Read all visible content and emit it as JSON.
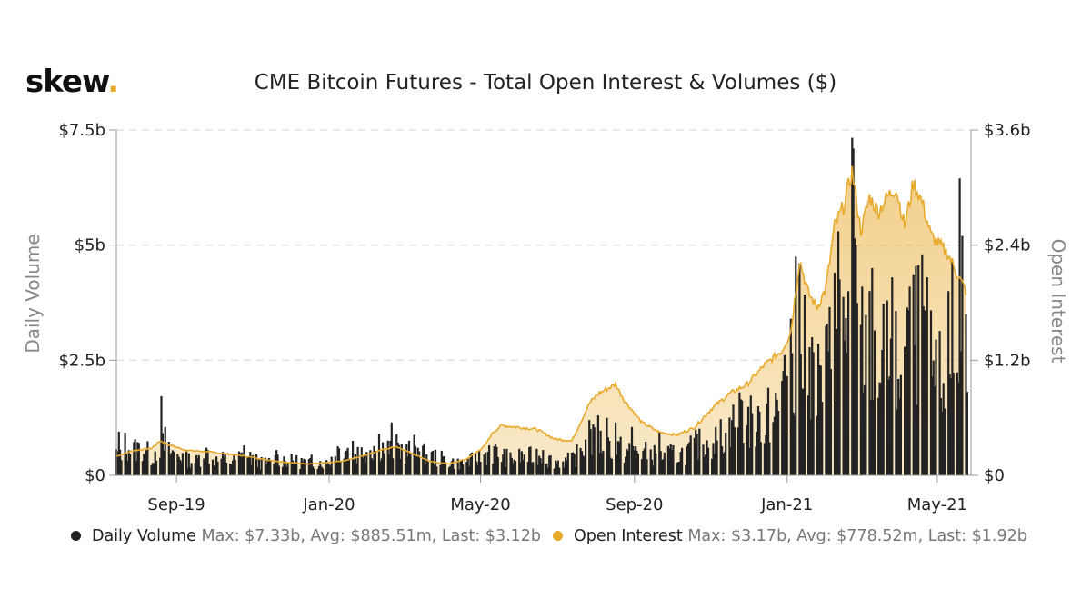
{
  "brand": {
    "name": "skew",
    "dot": "."
  },
  "title": "CME Bitcoin Futures - Total Open Interest & Volumes ($)",
  "legend": [
    {
      "name": "Daily Volume",
      "stats": "Max: $7.33b, Avg: $885.51m, Last: $3.12b",
      "color": "#222222"
    },
    {
      "name": "Open Interest",
      "stats": "Max: $3.17b, Avg: $778.52m, Last: $1.92b",
      "color": "#e8a92b"
    }
  ],
  "chart_data": {
    "type": "bar+area",
    "title": "CME Bitcoin Futures - Total Open Interest & Volumes ($)",
    "x_range": [
      "2019-07-15",
      "2021-05-28"
    ],
    "x_ticks": [
      {
        "date": "2019-09-01",
        "label": "Sep-19"
      },
      {
        "date": "2020-01-01",
        "label": "Jan-20"
      },
      {
        "date": "2020-05-01",
        "label": "May-20"
      },
      {
        "date": "2020-09-01",
        "label": "Sep-20"
      },
      {
        "date": "2021-01-01",
        "label": "Jan-21"
      },
      {
        "date": "2021-05-01",
        "label": "May-21"
      }
    ],
    "y_left": {
      "label": "Daily Volume",
      "min": 0,
      "max": 7.5,
      "ticks": [
        {
          "v": 0,
          "label": "$0"
        },
        {
          "v": 2.5,
          "label": "$2.5b"
        },
        {
          "v": 5,
          "label": "$5b"
        },
        {
          "v": 7.5,
          "label": "$7.5b"
        }
      ]
    },
    "y_right": {
      "label": "Open Interest",
      "min": 0,
      "max": 3.6,
      "ticks": [
        {
          "v": 0,
          "label": "$0"
        },
        {
          "v": 1.2,
          "label": "$1.2b"
        },
        {
          "v": 2.4,
          "label": "$2.4b"
        },
        {
          "v": 3.6,
          "label": "$3.6b"
        }
      ]
    },
    "grid": true,
    "series": [
      {
        "name": "Daily Volume",
        "type": "bar",
        "axis": "left",
        "unit": "$b",
        "color": "#222222",
        "points": [
          [
            "2019-07-15",
            0.45
          ],
          [
            "2019-07-22",
            0.65
          ],
          [
            "2019-07-29",
            0.55
          ],
          [
            "2019-08-05",
            0.6
          ],
          [
            "2019-08-12",
            0.4
          ],
          [
            "2019-08-19",
            0.7
          ],
          [
            "2019-08-26",
            0.5
          ],
          [
            "2019-09-03",
            0.45
          ],
          [
            "2019-09-10",
            0.35
          ],
          [
            "2019-09-17",
            0.3
          ],
          [
            "2019-09-24",
            0.55
          ],
          [
            "2019-10-01",
            0.3
          ],
          [
            "2019-10-08",
            0.35
          ],
          [
            "2019-10-15",
            0.3
          ],
          [
            "2019-10-22",
            0.4
          ],
          [
            "2019-10-29",
            0.4
          ],
          [
            "2019-11-05",
            0.3
          ],
          [
            "2019-11-12",
            0.25
          ],
          [
            "2019-11-19",
            0.35
          ],
          [
            "2019-11-26",
            0.35
          ],
          [
            "2019-12-03",
            0.3
          ],
          [
            "2019-12-10",
            0.3
          ],
          [
            "2019-12-17",
            0.25
          ],
          [
            "2019-12-24",
            0.3
          ],
          [
            "2019-12-31",
            0.25
          ],
          [
            "2020-01-07",
            0.55
          ],
          [
            "2020-01-14",
            0.6
          ],
          [
            "2020-01-21",
            0.45
          ],
          [
            "2020-01-28",
            0.55
          ],
          [
            "2020-02-04",
            0.6
          ],
          [
            "2020-02-11",
            0.65
          ],
          [
            "2020-02-18",
            0.55
          ],
          [
            "2020-02-25",
            0.6
          ],
          [
            "2020-03-03",
            0.5
          ],
          [
            "2020-03-10",
            0.6
          ],
          [
            "2020-03-17",
            0.45
          ],
          [
            "2020-03-24",
            0.4
          ],
          [
            "2020-03-31",
            0.35
          ],
          [
            "2020-04-07",
            0.3
          ],
          [
            "2020-04-14",
            0.25
          ],
          [
            "2020-04-21",
            0.3
          ],
          [
            "2020-04-28",
            0.35
          ],
          [
            "2020-05-05",
            0.45
          ],
          [
            "2020-05-12",
            0.5
          ],
          [
            "2020-05-19",
            0.4
          ],
          [
            "2020-05-26",
            0.35
          ],
          [
            "2020-06-02",
            0.4
          ],
          [
            "2020-06-09",
            0.4
          ],
          [
            "2020-06-16",
            0.45
          ],
          [
            "2020-06-23",
            0.35
          ],
          [
            "2020-06-30",
            0.3
          ],
          [
            "2020-07-07",
            0.3
          ],
          [
            "2020-07-14",
            0.35
          ],
          [
            "2020-07-21",
            0.55
          ],
          [
            "2020-07-28",
            0.75
          ],
          [
            "2020-08-04",
            0.7
          ],
          [
            "2020-08-11",
            0.65
          ],
          [
            "2020-08-18",
            0.6
          ],
          [
            "2020-08-25",
            0.5
          ],
          [
            "2020-09-01",
            0.55
          ],
          [
            "2020-09-08",
            0.5
          ],
          [
            "2020-09-15",
            0.45
          ],
          [
            "2020-09-22",
            0.4
          ],
          [
            "2020-09-29",
            0.45
          ],
          [
            "2020-10-06",
            0.45
          ],
          [
            "2020-10-13",
            0.5
          ],
          [
            "2020-10-20",
            0.65
          ],
          [
            "2020-10-27",
            0.7
          ],
          [
            "2020-11-03",
            0.8
          ],
          [
            "2020-11-10",
            0.85
          ],
          [
            "2020-11-17",
            1.0
          ],
          [
            "2020-11-24",
            1.3
          ],
          [
            "2020-12-01",
            1.2
          ],
          [
            "2020-12-08",
            1.1
          ],
          [
            "2020-12-15",
            1.3
          ],
          [
            "2020-12-22",
            1.4
          ],
          [
            "2020-12-29",
            1.6
          ],
          [
            "2021-01-05",
            2.6
          ],
          [
            "2021-01-12",
            2.8
          ],
          [
            "2021-01-19",
            2.2
          ],
          [
            "2021-01-26",
            2.0
          ],
          [
            "2021-02-02",
            2.3
          ],
          [
            "2021-02-09",
            3.2
          ],
          [
            "2021-02-16",
            3.3
          ],
          [
            "2021-02-23",
            3.6
          ],
          [
            "2021-03-02",
            2.6
          ],
          [
            "2021-03-09",
            2.8
          ],
          [
            "2021-03-16",
            2.4
          ],
          [
            "2021-03-23",
            2.6
          ],
          [
            "2021-03-30",
            2.3
          ],
          [
            "2021-04-06",
            2.5
          ],
          [
            "2021-04-13",
            3.0
          ],
          [
            "2021-04-20",
            3.4
          ],
          [
            "2021-04-27",
            2.2
          ],
          [
            "2021-05-04",
            2.0
          ],
          [
            "2021-05-11",
            2.3
          ],
          [
            "2021-05-18",
            2.8
          ],
          [
            "2021-05-25",
            3.12
          ]
        ],
        "spikes": [
          [
            "2019-07-17",
            0.95
          ],
          [
            "2019-08-20",
            1.72
          ],
          [
            "2019-08-23",
            1.05
          ],
          [
            "2019-09-25",
            0.6
          ],
          [
            "2019-10-25",
            0.65
          ],
          [
            "2019-11-20",
            0.55
          ],
          [
            "2019-12-18",
            0.45
          ],
          [
            "2020-01-20",
            0.75
          ],
          [
            "2020-02-10",
            0.9
          ],
          [
            "2020-02-20",
            1.15
          ],
          [
            "2020-03-12",
            0.6
          ],
          [
            "2020-05-08",
            0.65
          ],
          [
            "2020-05-25",
            0.5
          ],
          [
            "2020-06-20",
            0.55
          ],
          [
            "2020-07-27",
            1.2
          ],
          [
            "2020-08-03",
            1.3
          ],
          [
            "2020-08-10",
            1.25
          ],
          [
            "2020-08-17",
            1.15
          ],
          [
            "2020-08-30",
            1.05
          ],
          [
            "2020-09-21",
            0.95
          ],
          [
            "2020-10-21",
            0.9
          ],
          [
            "2020-11-05",
            1.05
          ],
          [
            "2020-11-18",
            1.2
          ],
          [
            "2020-11-25",
            1.65
          ],
          [
            "2020-12-09",
            1.5
          ],
          [
            "2020-12-17",
            1.9
          ],
          [
            "2020-12-28",
            2.05
          ],
          [
            "2021-01-04",
            3.4
          ],
          [
            "2021-01-08",
            4.75
          ],
          [
            "2021-01-11",
            4.6
          ],
          [
            "2021-01-21",
            3.0
          ],
          [
            "2021-02-08",
            4.4
          ],
          [
            "2021-02-11",
            5.3
          ],
          [
            "2021-02-19",
            4.0
          ],
          [
            "2021-02-22",
            7.33
          ],
          [
            "2021-02-23",
            7.1
          ],
          [
            "2021-02-25",
            5.0
          ],
          [
            "2021-03-02",
            4.1
          ],
          [
            "2021-03-10",
            4.5
          ],
          [
            "2021-03-22",
            3.8
          ],
          [
            "2021-03-26",
            4.3
          ],
          [
            "2021-04-09",
            4.1
          ],
          [
            "2021-04-14",
            4.55
          ],
          [
            "2021-04-19",
            4.8
          ],
          [
            "2021-04-23",
            4.3
          ],
          [
            "2021-05-10",
            4.0
          ],
          [
            "2021-05-13",
            4.7
          ],
          [
            "2021-05-19",
            6.45
          ],
          [
            "2021-05-21",
            5.2
          ],
          [
            "2021-05-24",
            3.5
          ]
        ]
      },
      {
        "name": "Open Interest",
        "type": "area",
        "axis": "right",
        "unit": "$b",
        "color": "#e8a92b",
        "points": [
          [
            "2019-07-15",
            0.2
          ],
          [
            "2019-07-29",
            0.26
          ],
          [
            "2019-08-12",
            0.28
          ],
          [
            "2019-08-19",
            0.36
          ],
          [
            "2019-08-26",
            0.32
          ],
          [
            "2019-09-09",
            0.26
          ],
          [
            "2019-09-23",
            0.25
          ],
          [
            "2019-10-07",
            0.23
          ],
          [
            "2019-10-21",
            0.21
          ],
          [
            "2019-11-04",
            0.18
          ],
          [
            "2019-11-18",
            0.15
          ],
          [
            "2019-12-02",
            0.13
          ],
          [
            "2019-12-16",
            0.12
          ],
          [
            "2019-12-30",
            0.13
          ],
          [
            "2020-01-13",
            0.15
          ],
          [
            "2020-01-27",
            0.2
          ],
          [
            "2020-02-10",
            0.26
          ],
          [
            "2020-02-24",
            0.3
          ],
          [
            "2020-03-09",
            0.22
          ],
          [
            "2020-03-23",
            0.14
          ],
          [
            "2020-04-06",
            0.12
          ],
          [
            "2020-04-20",
            0.17
          ],
          [
            "2020-05-04",
            0.3
          ],
          [
            "2020-05-11",
            0.45
          ],
          [
            "2020-05-18",
            0.52
          ],
          [
            "2020-06-01",
            0.5
          ],
          [
            "2020-06-15",
            0.48
          ],
          [
            "2020-06-29",
            0.38
          ],
          [
            "2020-07-13",
            0.36
          ],
          [
            "2020-07-27",
            0.75
          ],
          [
            "2020-08-03",
            0.85
          ],
          [
            "2020-08-10",
            0.9
          ],
          [
            "2020-08-17",
            0.95
          ],
          [
            "2020-08-24",
            0.78
          ],
          [
            "2020-09-07",
            0.55
          ],
          [
            "2020-09-21",
            0.45
          ],
          [
            "2020-10-05",
            0.42
          ],
          [
            "2020-10-19",
            0.5
          ],
          [
            "2020-11-02",
            0.7
          ],
          [
            "2020-11-16",
            0.85
          ],
          [
            "2020-11-30",
            0.95
          ],
          [
            "2020-12-14",
            1.15
          ],
          [
            "2020-12-28",
            1.3
          ],
          [
            "2021-01-04",
            1.5
          ],
          [
            "2021-01-11",
            2.25
          ],
          [
            "2021-01-18",
            1.9
          ],
          [
            "2021-01-25",
            1.75
          ],
          [
            "2021-02-01",
            1.95
          ],
          [
            "2021-02-08",
            2.6
          ],
          [
            "2021-02-15",
            2.8
          ],
          [
            "2021-02-22",
            3.17
          ],
          [
            "2021-03-01",
            2.55
          ],
          [
            "2021-03-08",
            2.9
          ],
          [
            "2021-03-15",
            2.75
          ],
          [
            "2021-03-22",
            2.9
          ],
          [
            "2021-03-29",
            3.0
          ],
          [
            "2021-04-05",
            2.6
          ],
          [
            "2021-04-12",
            3.05
          ],
          [
            "2021-04-19",
            2.85
          ],
          [
            "2021-04-26",
            2.5
          ],
          [
            "2021-05-03",
            2.4
          ],
          [
            "2021-05-10",
            2.3
          ],
          [
            "2021-05-17",
            2.1
          ],
          [
            "2021-05-24",
            1.92
          ]
        ]
      }
    ]
  }
}
